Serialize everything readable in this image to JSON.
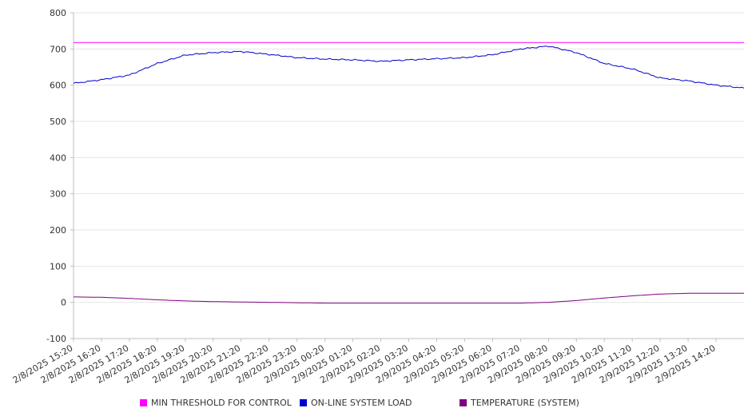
{
  "chart_data": {
    "type": "line",
    "title": "",
    "xlabel": "",
    "ylabel": "",
    "ylim": [
      -100,
      800
    ],
    "y_ticks": [
      -100,
      0,
      100,
      200,
      300,
      400,
      500,
      600,
      700,
      800
    ],
    "x_tick_labels": [
      "2/8/2025 15:20",
      "2/8/2025 16:20",
      "2/8/2025 17:20",
      "2/8/2025 18:20",
      "2/8/2025 19:20",
      "2/8/2025 20:20",
      "2/8/2025 21:20",
      "2/8/2025 22:20",
      "2/8/2025 23:20",
      "2/9/2025 00:20",
      "2/9/2025 01:20",
      "2/9/2025 02:20",
      "2/9/2025 03:20",
      "2/9/2025 04:20",
      "2/9/2025 05:20",
      "2/9/2025 06:20",
      "2/9/2025 07:20",
      "2/9/2025 08:20",
      "2/9/2025 09:20",
      "2/9/2025 10:20",
      "2/9/2025 11:20",
      "2/9/2025 12:20",
      "2/9/2025 13:20",
      "2/9/2025 14:20"
    ],
    "x": [
      "2/8/2025 15:20",
      "2/8/2025 16:20",
      "2/8/2025 17:20",
      "2/8/2025 18:20",
      "2/8/2025 19:20",
      "2/8/2025 20:20",
      "2/8/2025 21:20",
      "2/8/2025 22:20",
      "2/8/2025 23:20",
      "2/9/2025 00:20",
      "2/9/2025 01:20",
      "2/9/2025 02:20",
      "2/9/2025 03:20",
      "2/9/2025 04:20",
      "2/9/2025 05:20",
      "2/9/2025 06:20",
      "2/9/2025 07:20",
      "2/9/2025 08:20",
      "2/9/2025 09:20",
      "2/9/2025 10:20",
      "2/9/2025 11:20",
      "2/9/2025 12:20",
      "2/9/2025 13:20",
      "2/9/2025 14:20",
      "2/9/2025 15:20"
    ],
    "series": [
      {
        "name": "MIN THRESHOLD FOR CONTROL",
        "color": "#ff00ff",
        "values": [
          718,
          718,
          718,
          718,
          718,
          718,
          718,
          718,
          718,
          718,
          718,
          718,
          718,
          718,
          718,
          718,
          718,
          718,
          718,
          718,
          718,
          718,
          718,
          718,
          718
        ]
      },
      {
        "name": "ON-LINE SYSTEM LOAD",
        "color": "#0000cc",
        "values": [
          605,
          615,
          628,
          660,
          683,
          690,
          693,
          685,
          676,
          672,
          670,
          666,
          670,
          673,
          676,
          684,
          700,
          708,
          690,
          660,
          645,
          620,
          612,
          600,
          592
        ]
      },
      {
        "name": "TEMPERATURE (SYSTEM)",
        "color": "#800080",
        "values": [
          15,
          14,
          11,
          7,
          4,
          2,
          1,
          0,
          -1,
          -2,
          -2,
          -2,
          -2,
          -2,
          -2,
          -2,
          -2,
          0,
          5,
          12,
          18,
          23,
          25,
          25,
          25
        ]
      }
    ],
    "legend_position": "bottom",
    "grid": true
  }
}
